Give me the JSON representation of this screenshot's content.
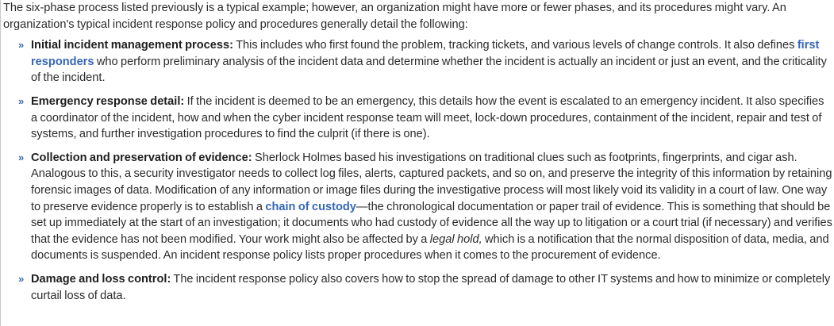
{
  "intro": "The six-phase process listed previously is a typical example; however, an organization might have more or fewer phases, and its procedures might vary. An organization's typical incident response policy and procedures generally detail the following:",
  "items": [
    {
      "marker": "»",
      "term": "Initial incident management process:",
      "text1": " This includes who first found the problem, tracking tickets, and various levels of change controls. It also defines ",
      "link": "first responders",
      "text2": " who perform preliminary analysis of the incident data and determine whether the incident is actually an incident or just an event, and the criticality of the incident."
    },
    {
      "marker": "»",
      "term": "Emergency response detail:",
      "text1": " If the incident is deemed to be an emergency, this details how the event is escalated to an emergency incident. It also specifies a coordinator of the incident, how and when the cyber incident response team will meet, lock-down procedures, containment of the incident, repair and test of systems, and further investigation procedures to find the culprit (if there is one)."
    },
    {
      "marker": "»",
      "term": "Collection and preservation of evidence:",
      "text1": " Sherlock Holmes based his investigations on traditional clues such as footprints, fingerprints, and cigar ash. Analogous to this, a security investigator needs to collect log files, alerts, captured packets, and so on, and preserve the integrity of this information by retaining forensic images of data. Modification of any information or image files during the investigative process will most likely void its validity in a court of law. One way to preserve evidence properly is to establish a ",
      "link": "chain of custody",
      "text2": "—the chronological documentation or paper trail of evidence. This is something that should be set up immediately at the start of an investigation; it documents who had custody of evidence all the way up to litigation or a court trial (if necessary) and verifies that the evidence has not been modified. Your work might also be affected by a ",
      "emph": "legal hold,",
      "text3": " which is a notification that the normal disposition of data, media, and documents is suspended. An incident response policy lists proper procedures when it comes to the procurement of evidence."
    },
    {
      "marker": "»",
      "term": "Damage and loss control:",
      "text1": " The incident response policy also covers how to stop the spread of damage to other IT systems and how to minimize or completely curtail loss of data."
    }
  ]
}
